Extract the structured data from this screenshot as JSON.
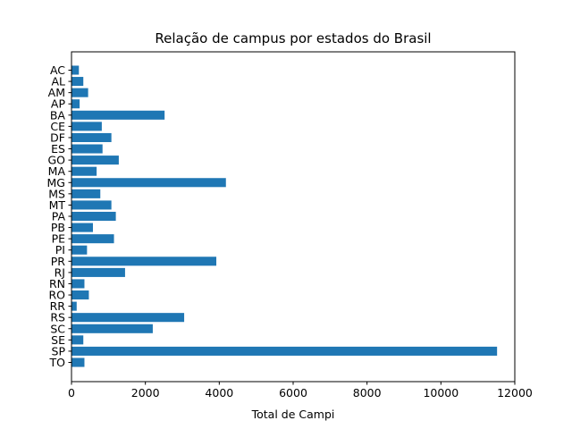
{
  "chart_data": {
    "type": "bar",
    "orientation": "horizontal",
    "title": "Relação de campus por estados do Brasil",
    "xlabel": "Total de Campi",
    "ylabel": "",
    "xlim": [
      0,
      12000
    ],
    "xticks": [
      0,
      2000,
      4000,
      6000,
      8000,
      10000,
      12000
    ],
    "grid": false,
    "bar_color": "#1f77b4",
    "categories": [
      "AC",
      "AL",
      "AM",
      "AP",
      "BA",
      "CE",
      "DF",
      "ES",
      "GO",
      "MA",
      "MG",
      "MS",
      "MT",
      "PA",
      "PB",
      "PE",
      "PI",
      "PR",
      "RJ",
      "RN",
      "RO",
      "RR",
      "RS",
      "SC",
      "SE",
      "SP",
      "TO"
    ],
    "values": [
      200,
      320,
      450,
      220,
      2520,
      820,
      1080,
      840,
      1280,
      680,
      4180,
      780,
      1080,
      1200,
      580,
      1150,
      420,
      3920,
      1450,
      350,
      470,
      140,
      3050,
      2200,
      320,
      11520,
      350
    ]
  }
}
